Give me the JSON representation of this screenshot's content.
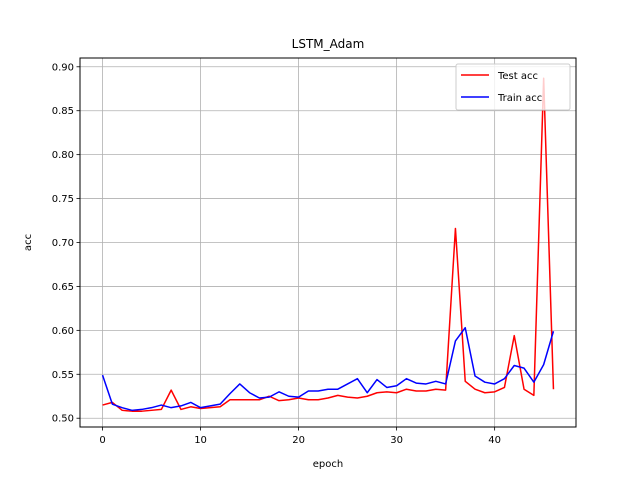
{
  "chart_data": {
    "type": "line",
    "title": "LSTM_Adam",
    "xlabel": "epoch",
    "ylabel": "acc",
    "xlim": [
      -2.3,
      48.3
    ],
    "ylim": [
      0.49,
      0.91
    ],
    "xticks": [
      0,
      10,
      20,
      30,
      40
    ],
    "yticks": [
      0.5,
      0.55,
      0.6,
      0.65,
      0.7,
      0.75,
      0.8,
      0.85,
      0.9
    ],
    "ytick_labels": [
      "0.50",
      "0.55",
      "0.60",
      "0.65",
      "0.70",
      "0.75",
      "0.80",
      "0.85",
      "0.90"
    ],
    "grid": true,
    "legend_position": "top-right",
    "series": [
      {
        "name": "Test acc",
        "color": "#ff0000",
        "x": [
          0,
          1,
          2,
          3,
          4,
          5,
          6,
          7,
          8,
          9,
          10,
          11,
          12,
          13,
          14,
          15,
          16,
          17,
          18,
          19,
          20,
          21,
          22,
          23,
          24,
          25,
          26,
          27,
          28,
          29,
          30,
          31,
          32,
          33,
          34,
          35,
          36,
          37,
          38,
          39,
          40,
          41,
          42,
          43,
          44,
          45,
          46
        ],
        "y": [
          0.515,
          0.518,
          0.509,
          0.508,
          0.508,
          0.509,
          0.51,
          0.532,
          0.51,
          0.513,
          0.511,
          0.512,
          0.513,
          0.521,
          0.521,
          0.521,
          0.521,
          0.525,
          0.52,
          0.521,
          0.523,
          0.521,
          0.521,
          0.523,
          0.526,
          0.524,
          0.523,
          0.525,
          0.529,
          0.53,
          0.529,
          0.533,
          0.531,
          0.531,
          0.533,
          0.532,
          0.716,
          0.542,
          0.533,
          0.529,
          0.53,
          0.535,
          0.594,
          0.533,
          0.526,
          0.887,
          0.533
        ]
      },
      {
        "name": "Train acc",
        "color": "#0000ff",
        "x": [
          0,
          1,
          2,
          3,
          4,
          5,
          6,
          7,
          8,
          9,
          10,
          11,
          12,
          13,
          14,
          15,
          16,
          17,
          18,
          19,
          20,
          21,
          22,
          23,
          24,
          25,
          26,
          27,
          28,
          29,
          30,
          31,
          32,
          33,
          34,
          35,
          36,
          37,
          38,
          39,
          40,
          41,
          42,
          43,
          44,
          45,
          46
        ],
        "y": [
          0.549,
          0.516,
          0.512,
          0.509,
          0.51,
          0.512,
          0.515,
          0.512,
          0.514,
          0.518,
          0.512,
          0.514,
          0.516,
          0.528,
          0.539,
          0.529,
          0.523,
          0.524,
          0.53,
          0.525,
          0.524,
          0.531,
          0.531,
          0.533,
          0.533,
          0.539,
          0.545,
          0.529,
          0.544,
          0.535,
          0.537,
          0.545,
          0.54,
          0.539,
          0.542,
          0.539,
          0.588,
          0.603,
          0.548,
          0.541,
          0.539,
          0.545,
          0.56,
          0.557,
          0.541,
          0.561,
          0.599
        ]
      }
    ]
  }
}
